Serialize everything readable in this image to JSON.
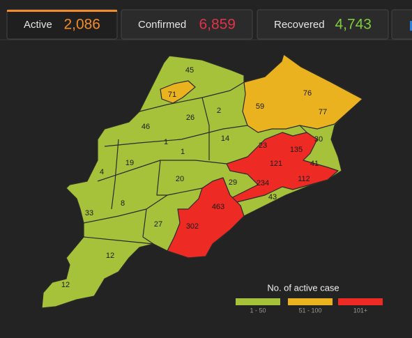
{
  "tabs": [
    {
      "label": "Active",
      "value": "2,086",
      "color": "#f28c28"
    },
    {
      "label": "Confirmed",
      "value": "6,859",
      "color": "#e0334a"
    },
    {
      "label": "Recovered",
      "value": "4,743",
      "color": "#7fcb3b"
    }
  ],
  "map": {
    "districts": [
      {
        "label": "45",
        "color": "#a6c13a"
      },
      {
        "label": "71",
        "color": "#e9b21e"
      },
      {
        "label": "26",
        "color": "#a6c13a"
      },
      {
        "label": "2",
        "color": "#a6c13a"
      },
      {
        "label": "59",
        "color": "#e9b21e"
      },
      {
        "label": "76",
        "color": "#e9b21e"
      },
      {
        "label": "77",
        "color": "#e9b21e"
      },
      {
        "label": "46",
        "color": "#a6c13a"
      },
      {
        "label": "1",
        "color": "#a6c13a"
      },
      {
        "label": "1",
        "color": "#a6c13a"
      },
      {
        "label": "14",
        "color": "#a6c13a"
      },
      {
        "label": "23",
        "color": "#a6c13a"
      },
      {
        "label": "30",
        "color": "#a6c13a"
      },
      {
        "label": "135",
        "color": "#ee2a24"
      },
      {
        "label": "19",
        "color": "#a6c13a"
      },
      {
        "label": "4",
        "color": "#a6c13a"
      },
      {
        "label": "121",
        "color": "#ee2a24"
      },
      {
        "label": "41",
        "color": "#a6c13a"
      },
      {
        "label": "20",
        "color": "#a6c13a"
      },
      {
        "label": "29",
        "color": "#a6c13a"
      },
      {
        "label": "234",
        "color": "#ee2a24"
      },
      {
        "label": "112",
        "color": "#ee2a24"
      },
      {
        "label": "8",
        "color": "#a6c13a"
      },
      {
        "label": "43",
        "color": "#a6c13a"
      },
      {
        "label": "463",
        "color": "#ee2a24"
      },
      {
        "label": "33",
        "color": "#a6c13a"
      },
      {
        "label": "27",
        "color": "#a6c13a"
      },
      {
        "label": "302",
        "color": "#ee2a24"
      },
      {
        "label": "12",
        "color": "#a6c13a"
      },
      {
        "label": "12",
        "color": "#a6c13a"
      }
    ],
    "legend": {
      "title": "No. of active case",
      "items": [
        {
          "label": "1 - 50",
          "color": "#a6c13a"
        },
        {
          "label": "51 - 100",
          "color": "#e9b21e"
        },
        {
          "label": "101+",
          "color": "#ee2a24"
        }
      ]
    }
  }
}
